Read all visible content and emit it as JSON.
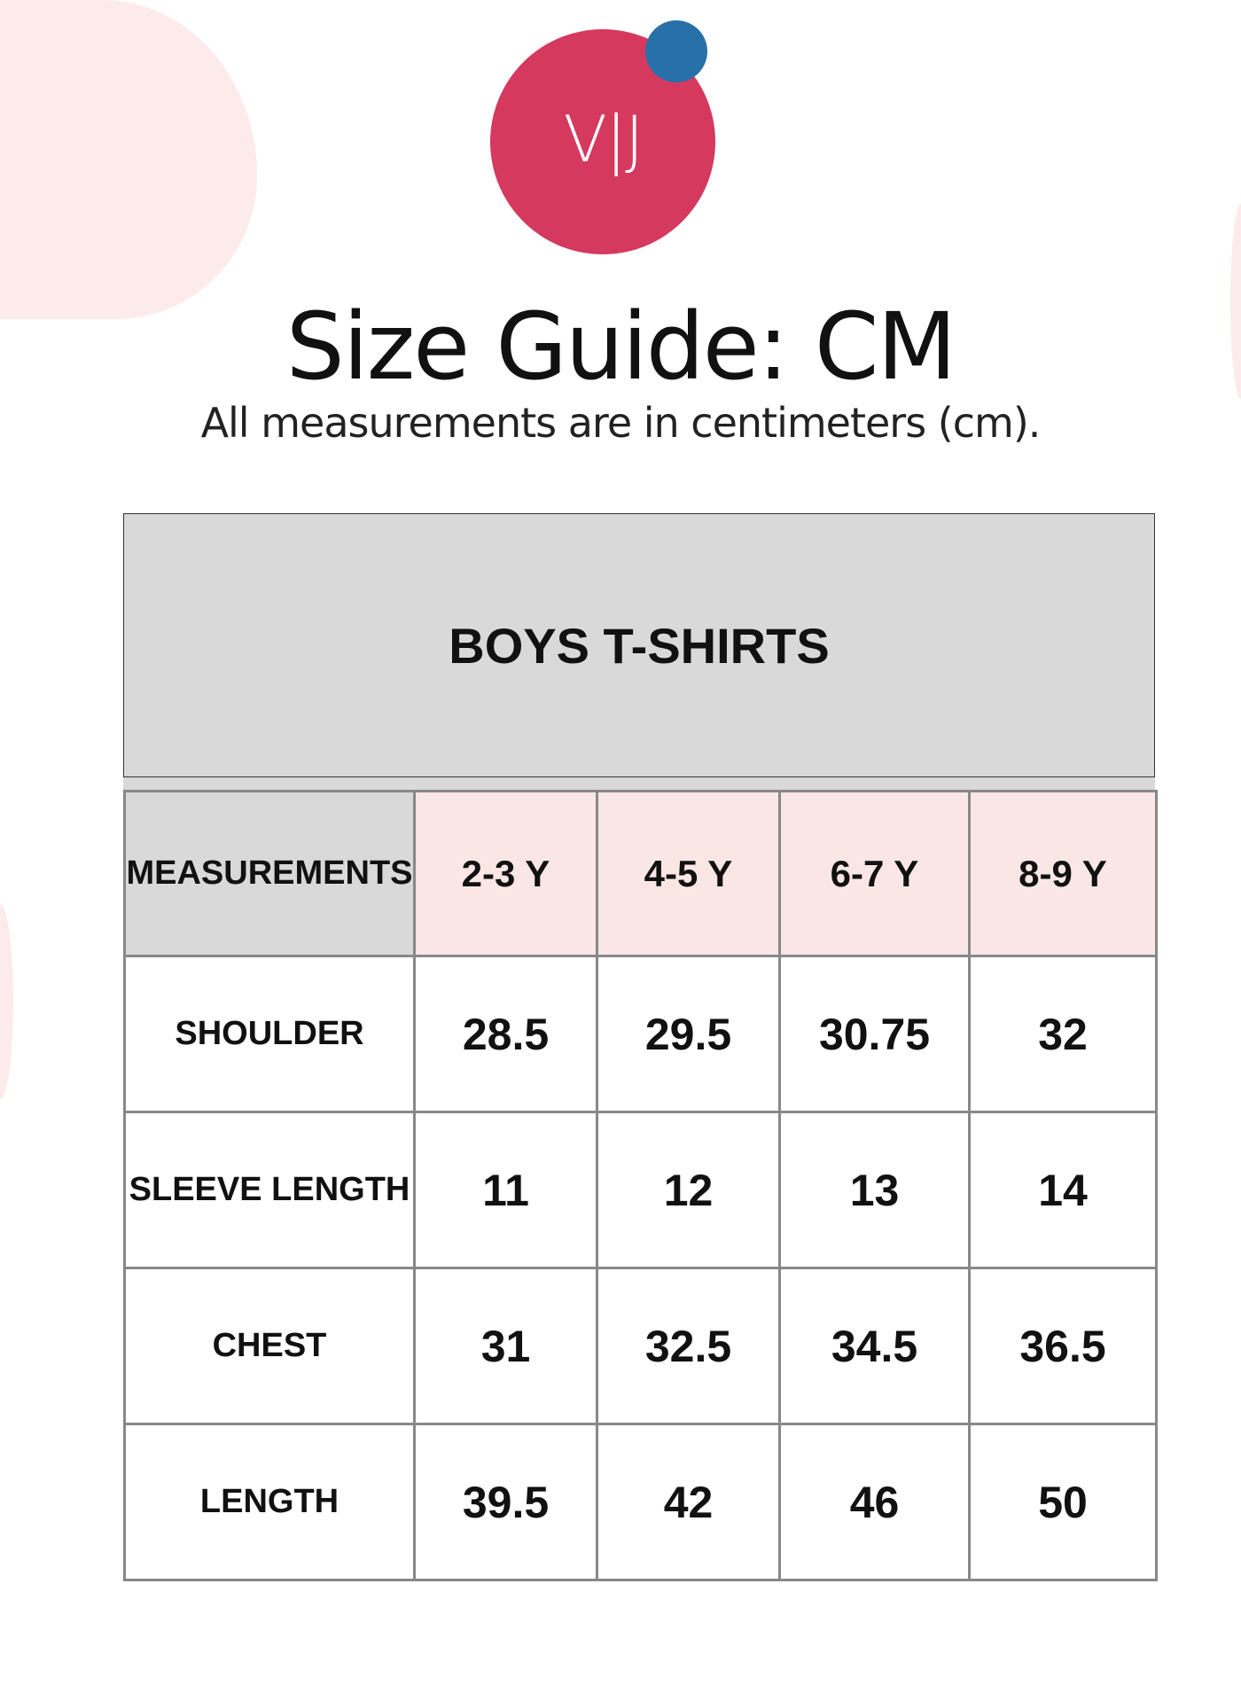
{
  "logo": {
    "text": "V|J",
    "circle_color": "#d5395e",
    "dot_color": "#2870a8"
  },
  "title": "Size Guide: CM",
  "subtitle": "All measurements are in centimeters (cm).",
  "table": {
    "title": "BOYS T-SHIRTS",
    "corner_label": "MEASUREMENTS",
    "columns": [
      "2-3 Y",
      "4-5 Y",
      "6-7 Y",
      "8-9 Y"
    ],
    "rows": [
      {
        "label": "SHOULDER",
        "values": [
          "28.5",
          "29.5",
          "30.75",
          "32"
        ]
      },
      {
        "label": "SLEEVE LENGTH",
        "values": [
          "11",
          "12",
          "13",
          "14"
        ]
      },
      {
        "label": "CHEST",
        "values": [
          "31",
          "32.5",
          "34.5",
          "36.5"
        ]
      },
      {
        "label": "LENGTH",
        "values": [
          "39.5",
          "42",
          "46",
          "50"
        ]
      }
    ]
  }
}
